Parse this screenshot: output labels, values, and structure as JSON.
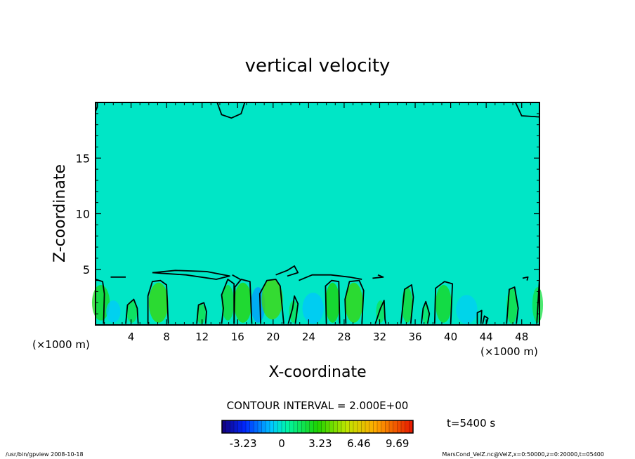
{
  "chart_data": {
    "type": "heatmap",
    "title": "vertical velocity",
    "xlabel": "X-coordinate",
    "ylabel": "Z-coordinate",
    "x_unit_left": "(×1000 m)",
    "x_unit_right": "(×1000 m)",
    "xlim": [
      0,
      50
    ],
    "ylim": [
      0,
      20
    ],
    "x_ticks": [
      "4",
      "8",
      "12",
      "16",
      "20",
      "24",
      "28",
      "32",
      "36",
      "40",
      "44",
      "48"
    ],
    "y_ticks": [
      "5",
      "10",
      "15"
    ],
    "x_tick_values": [
      4,
      8,
      12,
      16,
      20,
      24,
      28,
      32,
      36,
      40,
      44,
      48
    ],
    "y_tick_values": [
      5,
      10,
      15
    ],
    "contour_interval": "CONTOUR INTERVAL = 2.000E+00",
    "time_label": "t=5400 s",
    "colorbar": {
      "min": -5,
      "max": 11,
      "tick_labels": [
        "-3.23",
        "0",
        "3.23",
        "6.46",
        "9.69"
      ],
      "tick_values": [
        -3.23,
        0,
        3.23,
        6.46,
        9.69
      ]
    },
    "background_value": 0,
    "contour_lines": [
      {
        "points": [
          [
            0,
            19.2
          ],
          [
            0.2,
            19.6
          ],
          [
            0.2,
            20
          ]
        ]
      },
      {
        "points": [
          [
            13.7,
            20
          ],
          [
            14.2,
            18.9
          ],
          [
            15.3,
            18.6
          ],
          [
            16.4,
            19.0
          ],
          [
            16.8,
            20
          ]
        ]
      },
      {
        "points": [
          [
            47.3,
            20
          ],
          [
            48,
            18.8
          ],
          [
            50,
            18.7
          ]
        ]
      },
      {
        "points": [
          [
            0,
            4.1
          ],
          [
            0.8,
            3.9
          ],
          [
            1.0,
            2.8
          ],
          [
            0.9,
            0.1
          ]
        ]
      },
      {
        "points": [
          [
            1.7,
            4.3
          ],
          [
            3.4,
            4.3
          ]
        ]
      },
      {
        "points": [
          [
            3.4,
            0.1
          ],
          [
            3.6,
            1.8
          ],
          [
            4.3,
            2.3
          ],
          [
            4.7,
            1.5
          ],
          [
            4.8,
            0.1
          ]
        ]
      },
      {
        "points": [
          [
            5.9,
            0.1
          ],
          [
            5.9,
            2.6
          ],
          [
            6.4,
            3.9
          ],
          [
            7.3,
            4.0
          ],
          [
            8.0,
            3.6
          ],
          [
            8.2,
            0.1
          ]
        ]
      },
      {
        "points": [
          [
            6.4,
            4.7
          ],
          [
            10.2,
            4.5
          ],
          [
            13.6,
            4.1
          ],
          [
            15.1,
            4.4
          ],
          [
            12.5,
            4.8
          ],
          [
            9.0,
            4.9
          ],
          [
            6.4,
            4.7
          ]
        ]
      },
      {
        "points": [
          [
            11.4,
            0.1
          ],
          [
            11.6,
            1.8
          ],
          [
            12.2,
            2.0
          ],
          [
            12.5,
            1.2
          ],
          [
            12.4,
            0.1
          ]
        ]
      },
      {
        "points": [
          [
            14.2,
            0.1
          ],
          [
            14.4,
            1.5
          ],
          [
            14.2,
            2.7
          ],
          [
            14.9,
            4.1
          ],
          [
            15.6,
            3.7
          ],
          [
            15.6,
            0.1
          ]
        ]
      },
      {
        "points": [
          [
            15.4,
            4.5
          ],
          [
            16.3,
            4.1
          ]
        ]
      },
      {
        "points": [
          [
            15.6,
            0.1
          ],
          [
            15.7,
            3.4
          ],
          [
            16.4,
            4.1
          ],
          [
            17.4,
            3.9
          ],
          [
            17.6,
            0.1
          ]
        ]
      },
      {
        "points": [
          [
            18.6,
            0.1
          ],
          [
            18.5,
            2.8
          ],
          [
            19.3,
            4.0
          ],
          [
            20.3,
            4.1
          ],
          [
            20.8,
            3.5
          ],
          [
            21.2,
            0.1
          ]
        ]
      },
      {
        "points": [
          [
            20.3,
            4.5
          ],
          [
            21.6,
            4.9
          ],
          [
            22.4,
            5.3
          ],
          [
            22.8,
            4.7
          ],
          [
            21.6,
            4.4
          ]
        ]
      },
      {
        "points": [
          [
            21.7,
            0.1
          ],
          [
            22.2,
            1.5
          ],
          [
            22.4,
            2.6
          ],
          [
            22.8,
            1.9
          ],
          [
            22.5,
            0.1
          ]
        ]
      },
      {
        "points": [
          [
            22.9,
            4.0
          ],
          [
            24.4,
            4.5
          ],
          [
            26.5,
            4.5
          ],
          [
            28.6,
            4.3
          ],
          [
            30.0,
            4.1
          ]
        ]
      },
      {
        "points": [
          [
            26.0,
            0.1
          ],
          [
            25.9,
            3.5
          ],
          [
            26.6,
            4.0
          ],
          [
            27.4,
            3.9
          ],
          [
            27.5,
            0.1
          ]
        ]
      },
      {
        "points": [
          [
            28.2,
            0.1
          ],
          [
            28.1,
            2.3
          ],
          [
            28.6,
            3.9
          ],
          [
            29.7,
            4.0
          ],
          [
            30.2,
            3.1
          ],
          [
            30.0,
            0.1
          ]
        ]
      },
      {
        "points": [
          [
            31.2,
            4.2
          ],
          [
            32.4,
            4.3
          ],
          [
            31.8,
            4.5
          ]
        ]
      },
      {
        "points": [
          [
            31.5,
            0.1
          ],
          [
            32.1,
            1.5
          ],
          [
            32.5,
            2.2
          ],
          [
            32.6,
            0.5
          ],
          [
            32.7,
            0.1
          ]
        ]
      },
      {
        "points": [
          [
            34.4,
            0.1
          ],
          [
            34.8,
            3.2
          ],
          [
            35.6,
            3.6
          ],
          [
            35.8,
            2.5
          ],
          [
            35.5,
            0.1
          ]
        ]
      },
      {
        "points": [
          [
            36.7,
            0.1
          ],
          [
            36.9,
            1.5
          ],
          [
            37.2,
            2.1
          ],
          [
            37.6,
            1.0
          ],
          [
            37.4,
            0.1
          ]
        ]
      },
      {
        "points": [
          [
            38.2,
            0.1
          ],
          [
            38.3,
            3.3
          ],
          [
            39.3,
            3.9
          ],
          [
            40.2,
            3.7
          ],
          [
            40.0,
            0.1
          ]
        ]
      },
      {
        "points": [
          [
            43.0,
            0.1
          ],
          [
            43.0,
            1.1
          ],
          [
            43.5,
            1.3
          ],
          [
            43.4,
            0.1
          ]
        ]
      },
      {
        "points": [
          [
            43.6,
            0.1
          ],
          [
            43.8,
            0.8
          ],
          [
            44.2,
            0.6
          ],
          [
            44.0,
            0.1
          ]
        ]
      },
      {
        "points": [
          [
            46.3,
            0.1
          ],
          [
            46.6,
            3.2
          ],
          [
            47.2,
            3.4
          ],
          [
            47.6,
            1.5
          ],
          [
            47.4,
            0.1
          ]
        ]
      },
      {
        "points": [
          [
            48.1,
            4.2
          ],
          [
            48.7,
            4.3
          ],
          [
            48.6,
            4.0
          ]
        ]
      },
      {
        "points": [
          [
            49.7,
            0.1
          ],
          [
            50,
            4.2
          ]
        ]
      }
    ]
  },
  "footer": {
    "left": "/usr/bin/gpview   2008-10-18",
    "right": "MarsCond_VelZ.nc@VelZ,x=0:50000,z=0:20000,t=05400"
  },
  "colors": {
    "background_field": "#00f5a8",
    "contour": "#000000",
    "frame": "#000000"
  }
}
